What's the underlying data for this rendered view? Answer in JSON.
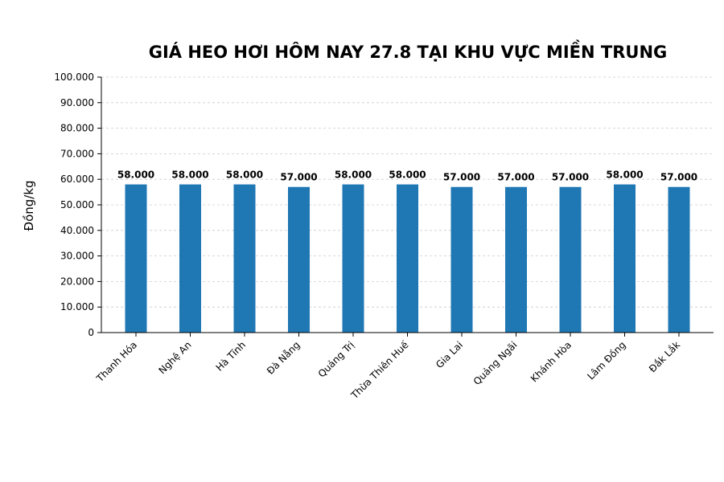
{
  "chart_data": {
    "type": "bar",
    "title": "GIÁ HEO HƠI HÔM NAY 27.8 TẠI KHU VỰC MIỀN TRUNG",
    "xlabel": "",
    "ylabel": "Đồng/kg",
    "ylim": [
      0,
      100000
    ],
    "yticks": [
      0,
      10000,
      20000,
      30000,
      40000,
      50000,
      60000,
      70000,
      80000,
      90000,
      100000
    ],
    "ytick_labels": [
      "0",
      "10.000",
      "20.000",
      "30.000",
      "40.000",
      "50.000",
      "60.000",
      "70.000",
      "80.000",
      "90.000",
      "100.000"
    ],
    "categories": [
      "Thanh Hóa",
      "Nghệ An",
      "Hà Tĩnh",
      "Đà Nẵng",
      "Quảng Trị",
      "Thừa Thiên Huế",
      "Gia Lai",
      "Quảng Ngãi",
      "Khánh Hòa",
      "Lâm Đồng",
      "Đắk Lắk"
    ],
    "values": [
      58000,
      58000,
      58000,
      57000,
      58000,
      58000,
      57000,
      57000,
      57000,
      58000,
      57000
    ],
    "data_labels": [
      "58.000",
      "58.000",
      "58.000",
      "57.000",
      "58.000",
      "58.000",
      "57.000",
      "57.000",
      "57.000",
      "58.000",
      "57.000"
    ],
    "bar_color": "#1f77b4",
    "grid": true,
    "grid_axis": "y",
    "legend": "none"
  }
}
